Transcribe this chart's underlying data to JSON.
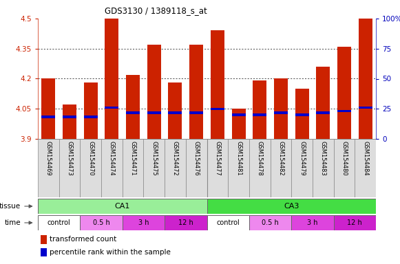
{
  "title": "GDS3130 / 1389118_s_at",
  "samples": [
    "GSM154469",
    "GSM154473",
    "GSM154470",
    "GSM154474",
    "GSM154471",
    "GSM154475",
    "GSM154472",
    "GSM154476",
    "GSM154477",
    "GSM154481",
    "GSM154478",
    "GSM154482",
    "GSM154479",
    "GSM154483",
    "GSM154480",
    "GSM154484"
  ],
  "bar_tops": [
    4.2,
    4.07,
    4.18,
    4.5,
    4.22,
    4.37,
    4.18,
    4.37,
    4.44,
    4.05,
    4.19,
    4.2,
    4.15,
    4.26,
    4.36,
    4.5
  ],
  "blue_marks": [
    4.01,
    4.01,
    4.01,
    4.055,
    4.03,
    4.03,
    4.03,
    4.03,
    4.05,
    4.02,
    4.02,
    4.03,
    4.02,
    4.03,
    4.04,
    4.055
  ],
  "bar_bottom": 3.9,
  "ylim": [
    3.9,
    4.5
  ],
  "yticks": [
    3.9,
    4.05,
    4.2,
    4.35,
    4.5
  ],
  "right_yticks": [
    0,
    25,
    50,
    75,
    100
  ],
  "right_ylim": [
    0,
    100
  ],
  "bar_color": "#CC2200",
  "blue_color": "#0000CC",
  "tissue_groups": [
    {
      "label": "CA1",
      "start": 0,
      "end": 8,
      "color": "#99EE99"
    },
    {
      "label": "CA3",
      "start": 8,
      "end": 16,
      "color": "#44DD44"
    }
  ],
  "time_groups": [
    {
      "label": "control",
      "start": 0,
      "end": 2,
      "color": "#FFFFFF"
    },
    {
      "label": "0.5 h",
      "start": 2,
      "end": 4,
      "color": "#EE88EE"
    },
    {
      "label": "3 h",
      "start": 4,
      "end": 6,
      "color": "#DD44DD"
    },
    {
      "label": "12 h",
      "start": 6,
      "end": 8,
      "color": "#CC22CC"
    },
    {
      "label": "control",
      "start": 8,
      "end": 10,
      "color": "#FFFFFF"
    },
    {
      "label": "0.5 h",
      "start": 10,
      "end": 12,
      "color": "#EE88EE"
    },
    {
      "label": "3 h",
      "start": 12,
      "end": 14,
      "color": "#DD44DD"
    },
    {
      "label": "12 h",
      "start": 14,
      "end": 16,
      "color": "#CC22CC"
    }
  ],
  "legend_items": [
    {
      "label": "transformed count",
      "color": "#CC2200"
    },
    {
      "label": "percentile rank within the sample",
      "color": "#0000CC"
    }
  ],
  "bar_width": 0.65,
  "tick_color_left": "#CC2200",
  "tick_color_right": "#0000BB",
  "label_bg": "#DDDDDD"
}
